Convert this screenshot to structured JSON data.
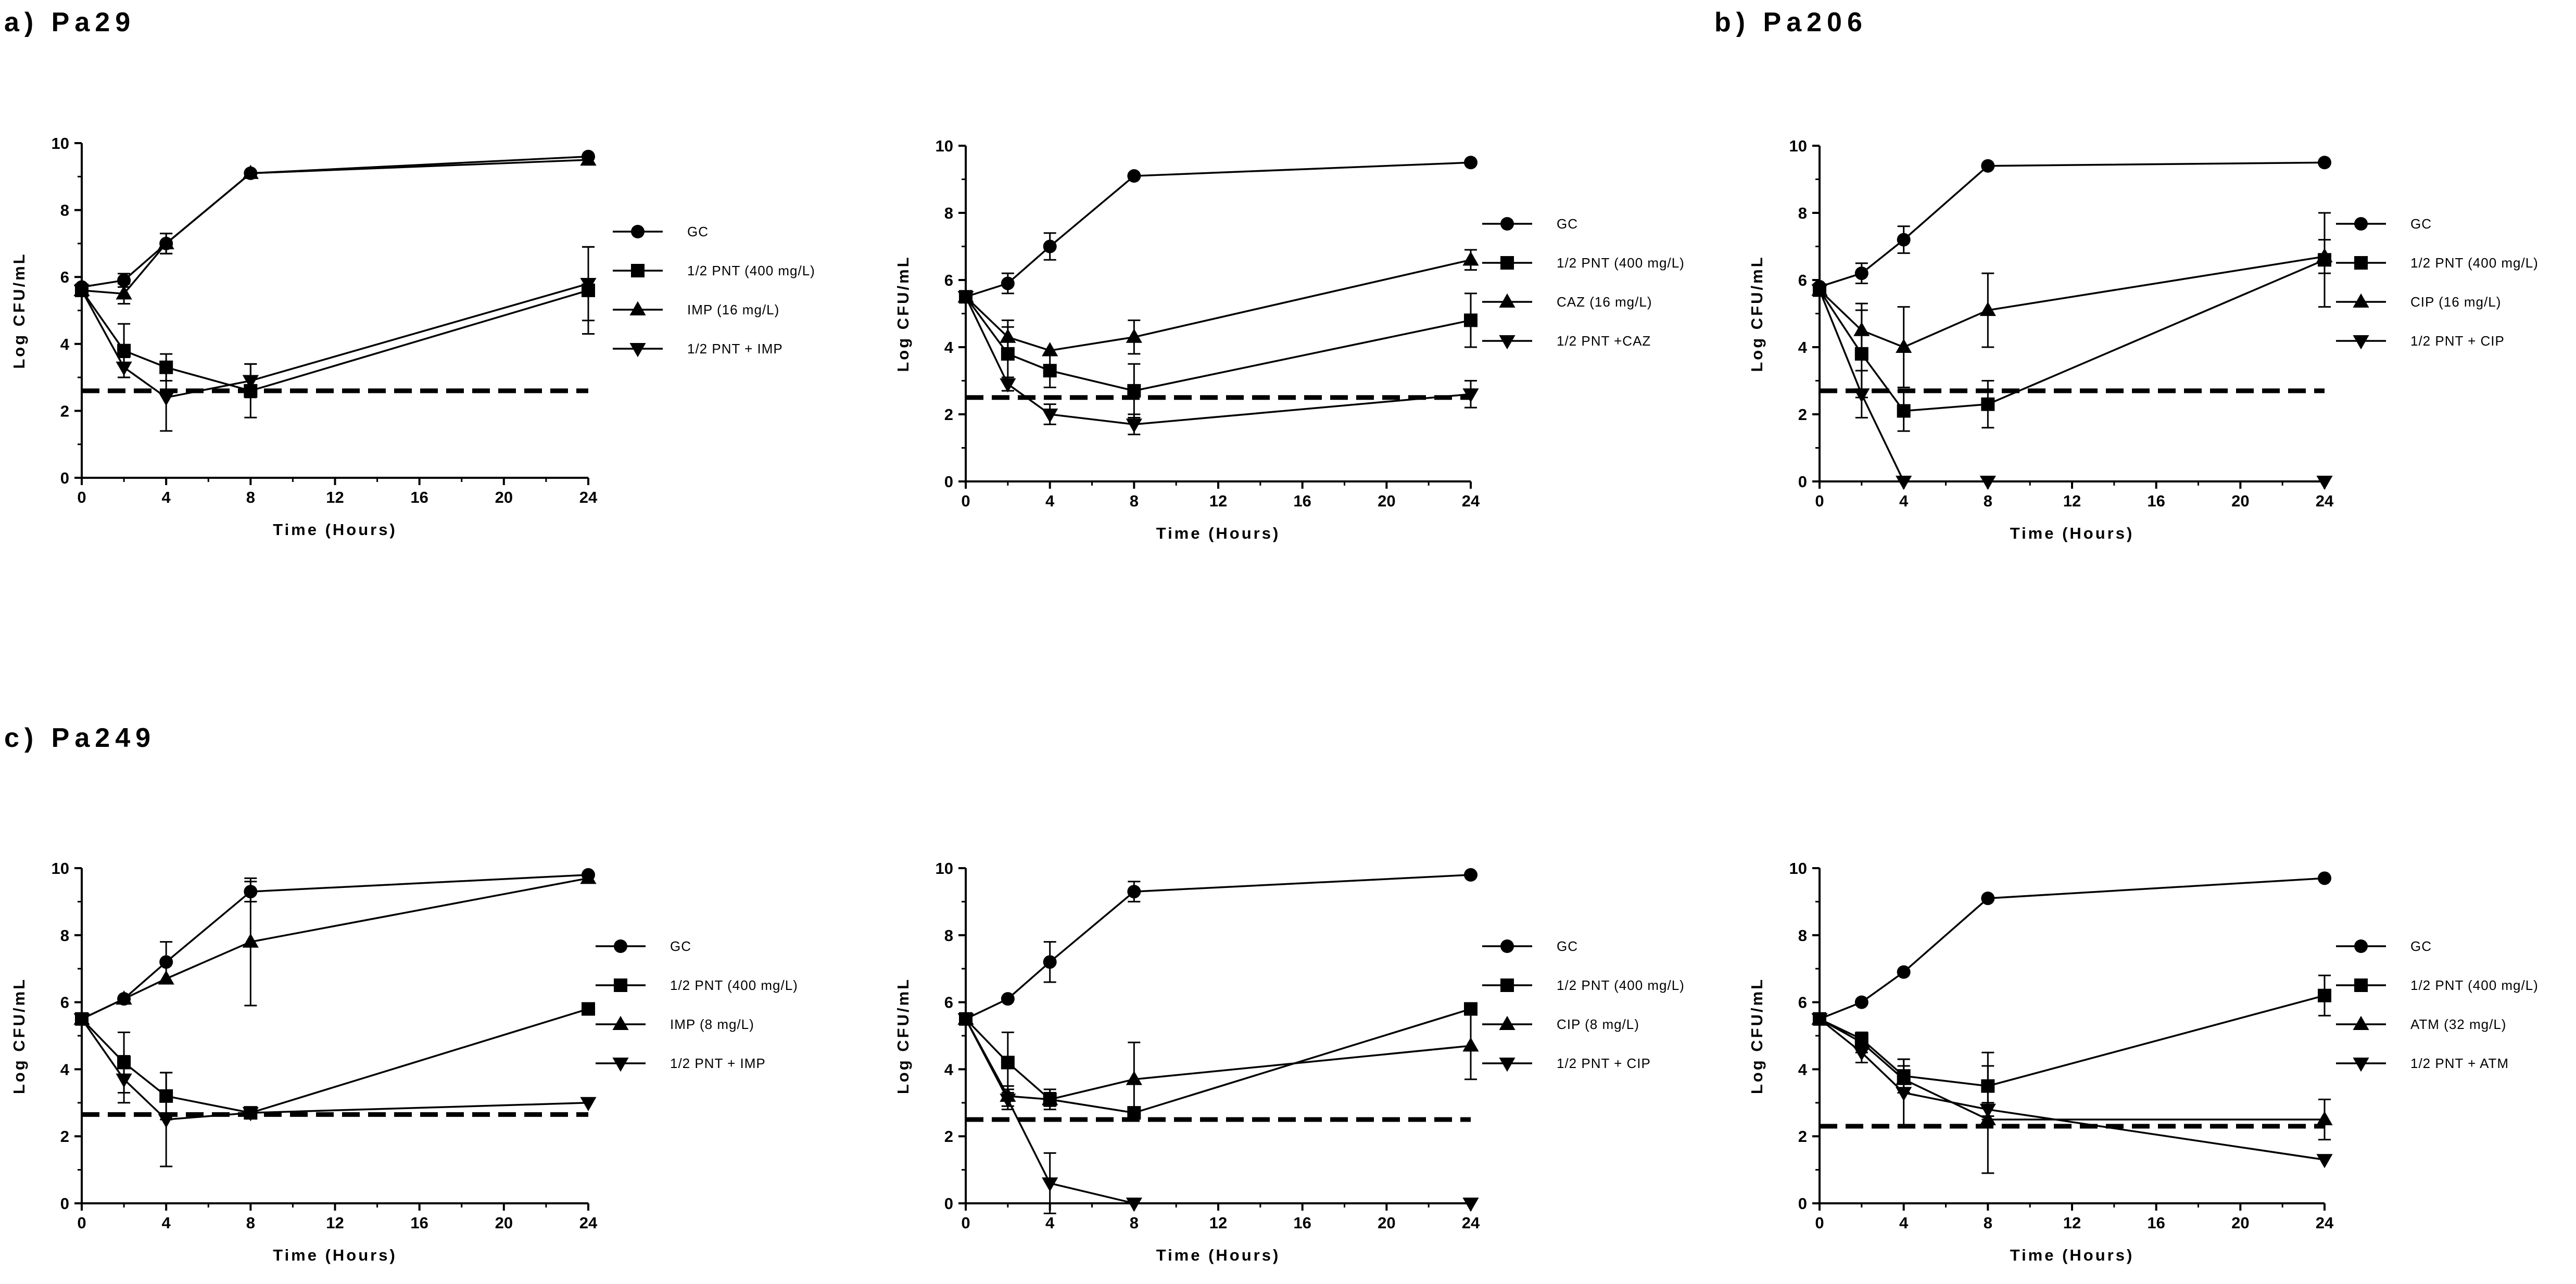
{
  "panel_labels": [
    "a) Pa29",
    "b) Pa206",
    "c) Pa249"
  ],
  "chart_data": [
    {
      "type": "line",
      "panel": "a) Pa29",
      "xlabel": "Time (Hours)",
      "ylabel": "Log CFU/mL",
      "xlim": [
        0,
        24
      ],
      "ylim": [
        0,
        10
      ],
      "xticks": [
        0,
        4,
        8,
        12,
        16,
        20,
        24
      ],
      "yticks": [
        0,
        2,
        4,
        6,
        8,
        10
      ],
      "x": [
        0,
        2,
        4,
        8,
        24
      ],
      "detection_limit": 2.6,
      "series": [
        {
          "name": "GC",
          "marker": "circle",
          "values": [
            5.7,
            5.9,
            7.0,
            9.1,
            9.6
          ],
          "errors": [
            0.1,
            0.2,
            0.3,
            0.1,
            0.1
          ]
        },
        {
          "name": "1/2 PNT (400 mg/L)",
          "marker": "square",
          "values": [
            5.6,
            3.8,
            3.3,
            2.6,
            5.6
          ],
          "errors": [
            0.1,
            0.8,
            0.4,
            0.8,
            1.3
          ]
        },
        {
          "name": "IMP (16 mg/L)",
          "marker": "triangle-up",
          "values": [
            5.6,
            5.5,
            7.0,
            9.1,
            9.5
          ],
          "errors": [
            0.1,
            0.3,
            0.3,
            0.1,
            0.1
          ]
        },
        {
          "name": "1/2 PNT + IMP",
          "marker": "triangle-down",
          "values": [
            5.6,
            3.3,
            2.4,
            2.9,
            5.8
          ],
          "errors": [
            0.1,
            0.3,
            1.0,
            0.5,
            1.1
          ]
        }
      ]
    },
    {
      "type": "line",
      "panel": "a) Pa29",
      "xlabel": "Time (Hours)",
      "ylabel": "Log CFU/mL",
      "xlim": [
        0,
        24
      ],
      "ylim": [
        0,
        10
      ],
      "xticks": [
        0,
        4,
        8,
        12,
        16,
        20,
        24
      ],
      "yticks": [
        0,
        2,
        4,
        6,
        8,
        10
      ],
      "x": [
        0,
        2,
        4,
        8,
        24
      ],
      "detection_limit": 2.5,
      "series": [
        {
          "name": "GC",
          "marker": "circle",
          "values": [
            5.5,
            5.9,
            7.0,
            9.1,
            9.5
          ],
          "errors": [
            0.1,
            0.3,
            0.4,
            0.1,
            0.1
          ]
        },
        {
          "name": "1/2 PNT (400 mg/L)",
          "marker": "square",
          "values": [
            5.5,
            3.8,
            3.3,
            2.7,
            4.8
          ],
          "errors": [
            0.1,
            0.8,
            0.5,
            0.8,
            0.8
          ]
        },
        {
          "name": "CAZ (16 mg/L)",
          "marker": "triangle-up",
          "values": [
            5.5,
            4.3,
            3.9,
            4.3,
            6.6
          ],
          "errors": [
            0.1,
            0.5,
            0.1,
            0.5,
            0.3
          ]
        },
        {
          "name": "1/2 PNT +CAZ",
          "marker": "triangle-down",
          "values": [
            5.5,
            2.9,
            2.0,
            1.7,
            2.6
          ],
          "errors": [
            0.1,
            0.2,
            0.3,
            0.3,
            0.4
          ]
        }
      ]
    },
    {
      "type": "line",
      "panel": "b) Pa206",
      "xlabel": "Time (Hours)",
      "ylabel": "Log CFU/mL",
      "xlim": [
        0,
        24
      ],
      "ylim": [
        0,
        10
      ],
      "xticks": [
        0,
        4,
        8,
        12,
        16,
        20,
        24
      ],
      "yticks": [
        0,
        2,
        4,
        6,
        8,
        10
      ],
      "x": [
        0,
        2,
        4,
        8,
        24
      ],
      "detection_limit": 2.7,
      "series": [
        {
          "name": "GC",
          "marker": "circle",
          "values": [
            5.8,
            6.2,
            7.2,
            9.4,
            9.5
          ],
          "errors": [
            0.1,
            0.3,
            0.4,
            0.1,
            0.1
          ]
        },
        {
          "name": "1/2 PNT (400 mg/L)",
          "marker": "square",
          "values": [
            5.7,
            3.8,
            2.1,
            2.3,
            6.6
          ],
          "errors": [
            0.1,
            1.3,
            0.6,
            0.7,
            1.4
          ]
        },
        {
          "name": "CIP (16 mg/L)",
          "marker": "triangle-up",
          "values": [
            5.7,
            4.5,
            4.0,
            5.1,
            6.7
          ],
          "errors": [
            0.1,
            0.8,
            1.2,
            1.1,
            0.5
          ]
        },
        {
          "name": "1/2 PNT + CIP",
          "marker": "triangle-down",
          "values": [
            5.7,
            2.6,
            0,
            0,
            0
          ],
          "errors": [
            0.1,
            0.7,
            0,
            0,
            0
          ]
        }
      ]
    },
    {
      "type": "line",
      "panel": "c) Pa249",
      "xlabel": "Time (Hours)",
      "ylabel": "Log CFU/mL",
      "xlim": [
        0,
        24
      ],
      "ylim": [
        0,
        10
      ],
      "xticks": [
        0,
        4,
        8,
        12,
        16,
        20,
        24
      ],
      "yticks": [
        0,
        2,
        4,
        6,
        8,
        10
      ],
      "x": [
        0,
        2,
        4,
        8,
        24
      ],
      "detection_limit": 2.65,
      "series": [
        {
          "name": "GC",
          "marker": "circle",
          "values": [
            5.5,
            6.1,
            7.2,
            9.3,
            9.8
          ],
          "errors": [
            0.1,
            0.1,
            0.6,
            0.3,
            0.1
          ]
        },
        {
          "name": "1/2 PNT (400 mg/L)",
          "marker": "square",
          "values": [
            5.5,
            4.2,
            3.2,
            2.7,
            5.8
          ],
          "errors": [
            0.1,
            0.9,
            0.7,
            0.1,
            0.1
          ]
        },
        {
          "name": "IMP (8 mg/L)",
          "marker": "triangle-up",
          "values": [
            5.5,
            6.1,
            6.7,
            7.8,
            9.7
          ],
          "errors": [
            0.1,
            0.1,
            0.1,
            1.9,
            0.1
          ]
        },
        {
          "name": "1/2 PNT + IMP",
          "marker": "triangle-down",
          "values": [
            5.5,
            3.7,
            2.5,
            2.7,
            3.0
          ],
          "errors": [
            0.1,
            0.7,
            1.4,
            0.1,
            0.1
          ]
        }
      ]
    },
    {
      "type": "line",
      "panel": "c) Pa249",
      "xlabel": "Time (Hours)",
      "ylabel": "Log CFU/mL",
      "xlim": [
        0,
        24
      ],
      "ylim": [
        0,
        10
      ],
      "xticks": [
        0,
        4,
        8,
        12,
        16,
        20,
        24
      ],
      "yticks": [
        0,
        2,
        4,
        6,
        8,
        10
      ],
      "x": [
        0,
        2,
        4,
        8,
        24
      ],
      "detection_limit": 2.5,
      "series": [
        {
          "name": "GC",
          "marker": "circle",
          "values": [
            5.5,
            6.1,
            7.2,
            9.3,
            9.8
          ],
          "errors": [
            0.1,
            0.1,
            0.6,
            0.3,
            0.1
          ]
        },
        {
          "name": "1/2 PNT (400 mg/L)",
          "marker": "square",
          "values": [
            5.5,
            4.2,
            3.1,
            2.7,
            5.8
          ],
          "errors": [
            0.1,
            0.9,
            0.3,
            0.1,
            0.1
          ]
        },
        {
          "name": "CIP (8 mg/L)",
          "marker": "triangle-up",
          "values": [
            5.5,
            3.2,
            3.1,
            3.7,
            4.7
          ],
          "errors": [
            0.1,
            0.3,
            0.2,
            1.1,
            1.0
          ]
        },
        {
          "name": "1/2 PNT + CIP",
          "marker": "triangle-down",
          "values": [
            5.5,
            3.1,
            0.6,
            0,
            0
          ],
          "errors": [
            0.1,
            0.3,
            0.9,
            0,
            0
          ]
        }
      ]
    },
    {
      "type": "line",
      "panel": "c) Pa249",
      "xlabel": "Time (Hours)",
      "ylabel": "Log CFU/mL",
      "xlim": [
        0,
        24
      ],
      "ylim": [
        0,
        10
      ],
      "xticks": [
        0,
        4,
        8,
        12,
        16,
        20,
        24
      ],
      "yticks": [
        0,
        2,
        4,
        6,
        8,
        10
      ],
      "x": [
        0,
        2,
        4,
        8,
        24
      ],
      "detection_limit": 2.3,
      "series": [
        {
          "name": "GC",
          "marker": "circle",
          "values": [
            5.5,
            6.0,
            6.9,
            9.1,
            9.7
          ],
          "errors": [
            0.1,
            0.1,
            0.1,
            0.1,
            0.1
          ]
        },
        {
          "name": "1/2 PNT (400 mg/L)",
          "marker": "square",
          "values": [
            5.5,
            4.9,
            3.8,
            3.5,
            6.2
          ],
          "errors": [
            0.1,
            0.2,
            0.5,
            1.0,
            0.6
          ]
        },
        {
          "name": "ATM (32 mg/L)",
          "marker": "triangle-up",
          "values": [
            5.5,
            4.8,
            3.7,
            2.5,
            2.5
          ],
          "errors": [
            0.1,
            0.3,
            0.4,
            1.6,
            0.6
          ]
        },
        {
          "name": "1/2 PNT + ATM",
          "marker": "triangle-down",
          "values": [
            5.5,
            4.5,
            3.3,
            2.8,
            1.3
          ],
          "errors": [
            0.1,
            0.3,
            1.0,
            0.2,
            0.1
          ]
        }
      ]
    }
  ]
}
